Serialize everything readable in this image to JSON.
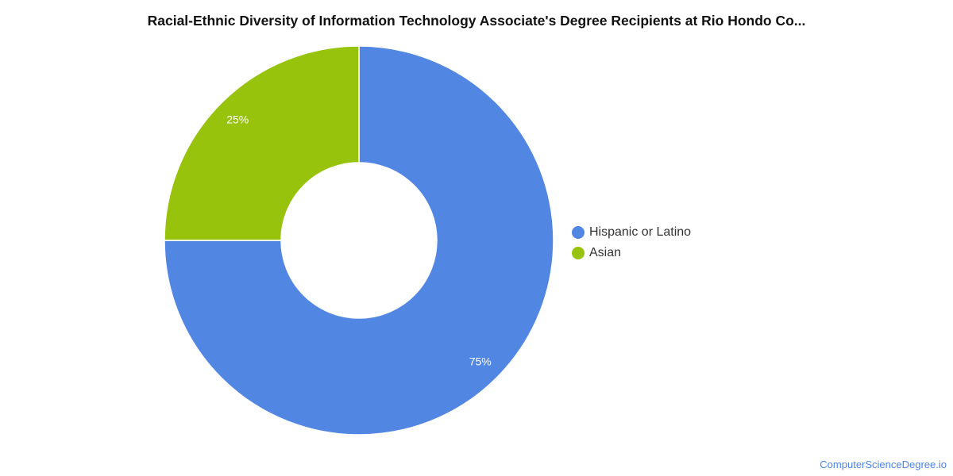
{
  "chart_data": {
    "type": "pie",
    "variant": "donut",
    "title": "Racial-Ethnic Diversity of Information Technology Associate's Degree Recipients at Rio Hondo Co...",
    "categories": [
      "Hispanic or Latino",
      "Asian"
    ],
    "values": [
      75,
      25
    ],
    "value_labels": [
      "75%",
      "25%"
    ],
    "colors": [
      "#5286e3",
      "#98c30c"
    ],
    "legend_placement": "right"
  },
  "footer": {
    "source": "ComputerScienceDegree.io"
  }
}
